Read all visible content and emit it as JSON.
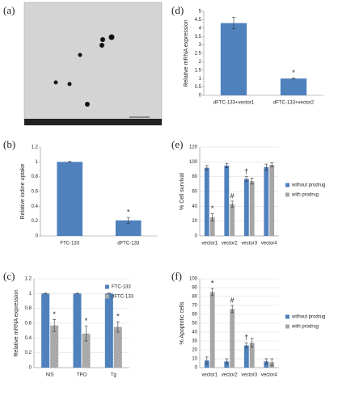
{
  "chart_data": [
    {
      "type": "image",
      "label": "(a)"
    },
    {
      "type": "bar",
      "label": "(d)",
      "ylabel": "Relative mRNA expression",
      "categories": [
        "dFTC-133+vector1",
        "dFTC-133+vector2"
      ],
      "values": [
        4.3,
        1.0
      ],
      "errors": [
        0.35,
        0.03
      ],
      "markers": [
        null,
        "*"
      ],
      "color": "#4f81bd",
      "ylim": [
        0,
        5
      ],
      "yticks": [
        0,
        0.5,
        1,
        1.5,
        2,
        2.5,
        3,
        3.5,
        4,
        4.5,
        5
      ],
      "grid": false
    },
    {
      "type": "bar",
      "label": "(b)",
      "ylabel": "Relative iodine uptake",
      "categories": [
        "FTC-133",
        "dFTC-133"
      ],
      "values": [
        1.0,
        0.21
      ],
      "errors": [
        0.005,
        0.04
      ],
      "markers": [
        null,
        "*"
      ],
      "color": "#4f81bd",
      "ylim": [
        0,
        1.2
      ],
      "yticks": [
        0,
        0.2,
        0.4,
        0.6,
        0.8,
        1,
        1.2
      ],
      "grid": false
    },
    {
      "type": "bar",
      "label": "(e)",
      "ylabel": "% Cell survival",
      "categories": [
        "vector1",
        "vector2",
        "vector3",
        "vector4"
      ],
      "series": [
        {
          "name": "without prodrug",
          "color": "#4f81bd",
          "values": [
            92,
            95,
            77,
            93
          ],
          "errors": [
            3,
            3,
            3,
            4
          ],
          "markers": [
            null,
            null,
            "†",
            null
          ]
        },
        {
          "name": "with prodrug",
          "color": "#a6a6a6",
          "values": [
            25,
            43,
            74,
            96
          ],
          "errors": [
            5,
            4,
            4,
            3
          ],
          "markers": [
            "*",
            "#",
            null,
            null
          ]
        }
      ],
      "ylim": [
        0,
        120
      ],
      "yticks": [
        0,
        20,
        40,
        60,
        80,
        100,
        120
      ],
      "grid": true,
      "legend": "right"
    },
    {
      "type": "bar",
      "label": "(c)",
      "ylabel": "Relative mRNA expression",
      "categories": [
        "NIS",
        "TPO",
        "Tg"
      ],
      "series": [
        {
          "name": "FTC-133",
          "color": "#4f81bd",
          "values": [
            1,
            1,
            1
          ],
          "errors": [
            0.005,
            0.005,
            0.005
          ],
          "markers": [
            null,
            null,
            null
          ]
        },
        {
          "name": "dFTC-133",
          "color": "#a6a6a6",
          "hatch": true,
          "values": [
            0.57,
            0.46,
            0.55
          ],
          "errors": [
            0.08,
            0.1,
            0.07
          ],
          "markers": [
            "*",
            "*",
            "*"
          ]
        }
      ],
      "ylim": [
        0,
        1.2
      ],
      "yticks": [
        0,
        0.2,
        0.4,
        0.6,
        0.8,
        1,
        1.2
      ],
      "grid": true,
      "legend": "upper right"
    },
    {
      "type": "bar",
      "label": "(f)",
      "ylabel": "% Apoptotic cells",
      "categories": [
        "vector1",
        "vector2",
        "vector3",
        "vector4"
      ],
      "series": [
        {
          "name": "without prodrug",
          "color": "#4f81bd",
          "values": [
            8,
            7,
            25,
            7
          ],
          "errors": [
            4,
            3,
            3,
            3
          ],
          "markers": [
            null,
            null,
            "†",
            null
          ]
        },
        {
          "name": "with prodrug",
          "color": "#a6a6a6",
          "values": [
            85,
            66,
            28,
            6
          ],
          "errors": [
            4,
            4,
            5,
            4
          ],
          "markers": [
            "*",
            "#",
            null,
            null
          ]
        }
      ],
      "ylim": [
        0,
        100
      ],
      "yticks": [
        0,
        10,
        20,
        30,
        40,
        50,
        60,
        70,
        80,
        90,
        100
      ],
      "grid": true,
      "legend": "right"
    }
  ]
}
